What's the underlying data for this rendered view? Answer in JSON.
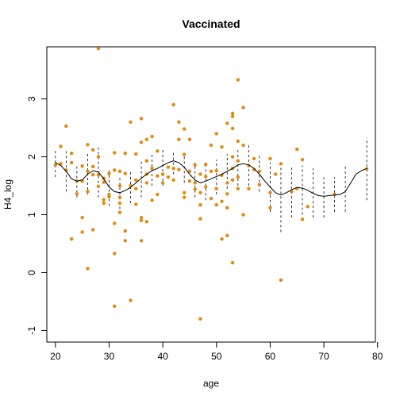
{
  "chart_data": {
    "type": "scatter",
    "title": "Vaccinated",
    "xlabel": "age",
    "ylabel": "H4_log",
    "xlim": [
      18.4,
      79.6
    ],
    "ylim": [
      -1.2,
      3.9
    ],
    "xticks": [
      20,
      30,
      40,
      50,
      60,
      70,
      80
    ],
    "yticks": [
      -1,
      0,
      1,
      2,
      3
    ],
    "grid": false,
    "point_color": "#E08A0B",
    "line_color": "#000000",
    "points": [
      [
        20,
        1.86
      ],
      [
        21,
        1.88
      ],
      [
        21,
        2.18
      ],
      [
        22,
        2.53
      ],
      [
        22,
        1.77
      ],
      [
        23,
        1.9
      ],
      [
        23,
        0.58
      ],
      [
        23,
        2.06
      ],
      [
        24,
        1.58
      ],
      [
        24,
        1.36
      ],
      [
        25,
        1.84
      ],
      [
        25,
        1.58
      ],
      [
        25,
        0.95
      ],
      [
        25,
        0.7
      ],
      [
        26,
        1.4
      ],
      [
        26,
        1.75
      ],
      [
        26,
        2.21
      ],
      [
        26,
        0.07
      ],
      [
        27,
        1.69
      ],
      [
        27,
        1.83
      ],
      [
        27,
        2.12
      ],
      [
        27,
        0.74
      ],
      [
        28,
        3.87
      ],
      [
        28,
        2.0
      ],
      [
        28,
        1.69
      ],
      [
        28,
        1.49
      ],
      [
        29,
        1.26
      ],
      [
        29,
        1.2
      ],
      [
        29,
        1.56
      ],
      [
        29,
        1.63
      ],
      [
        30,
        1.35
      ],
      [
        30,
        1.71
      ],
      [
        30,
        1.31
      ],
      [
        31,
        1.77
      ],
      [
        31,
        2.07
      ],
      [
        31,
        0.85
      ],
      [
        31,
        0.33
      ],
      [
        31,
        -0.58
      ],
      [
        32,
        1.75
      ],
      [
        32,
        1.5
      ],
      [
        32,
        1.3
      ],
      [
        32,
        1.2
      ],
      [
        32,
        1.04
      ],
      [
        33,
        1.71
      ],
      [
        33,
        2.06
      ],
      [
        33,
        0.55
      ],
      [
        33,
        0.72
      ],
      [
        34,
        2.6
      ],
      [
        34,
        1.5
      ],
      [
        34,
        -0.48
      ],
      [
        35,
        2.05
      ],
      [
        35,
        1.6
      ],
      [
        35,
        1.45
      ],
      [
        35,
        1.18
      ],
      [
        36,
        2.66
      ],
      [
        36,
        2.25
      ],
      [
        36,
        0.95
      ],
      [
        36,
        0.9
      ],
      [
        36,
        0.55
      ],
      [
        37,
        2.3
      ],
      [
        37,
        1.93
      ],
      [
        37,
        1.7
      ],
      [
        37,
        1.55
      ],
      [
        37,
        0.88
      ],
      [
        38,
        2.35
      ],
      [
        38,
        1.8
      ],
      [
        38,
        1.25
      ],
      [
        39,
        2.1
      ],
      [
        39,
        1.67
      ],
      [
        39,
        1.35
      ],
      [
        40,
        1.55
      ],
      [
        40,
        1.7
      ],
      [
        41,
        1.82
      ],
      [
        41,
        1.65
      ],
      [
        42,
        2.9
      ],
      [
        42,
        1.8
      ],
      [
        42,
        1.6
      ],
      [
        43,
        2.6
      ],
      [
        43,
        2.3
      ],
      [
        43,
        1.78
      ],
      [
        44,
        2.48
      ],
      [
        44,
        2.04
      ],
      [
        44,
        1.38
      ],
      [
        44,
        1.3
      ],
      [
        45,
        2.3
      ],
      [
        45,
        1.75
      ],
      [
        45,
        1.58
      ],
      [
        46,
        1.86
      ],
      [
        46,
        1.55
      ],
      [
        46,
        1.44
      ],
      [
        47,
        1.7
      ],
      [
        47,
        1.38
      ],
      [
        47,
        1.17
      ],
      [
        47,
        0.93
      ],
      [
        47,
        -0.8
      ],
      [
        48,
        1.87
      ],
      [
        48,
        1.66
      ],
      [
        48,
        1.48
      ],
      [
        49,
        2.2
      ],
      [
        49,
        1.75
      ],
      [
        49,
        1.28
      ],
      [
        50,
        2.4
      ],
      [
        50,
        1.76
      ],
      [
        50,
        1.45
      ],
      [
        50,
        1.17
      ],
      [
        51,
        2.17
      ],
      [
        51,
        1.68
      ],
      [
        51,
        1.23
      ],
      [
        51,
        0.58
      ],
      [
        52,
        2.58
      ],
      [
        52,
        1.55
      ],
      [
        52,
        1.36
      ],
      [
        52,
        1.12
      ],
      [
        52,
        0.64
      ],
      [
        53,
        2.75
      ],
      [
        53,
        2.7
      ],
      [
        53,
        2.49
      ],
      [
        53,
        2.0
      ],
      [
        53,
        1.8
      ],
      [
        53,
        1.6
      ],
      [
        53,
        0.17
      ],
      [
        54,
        3.33
      ],
      [
        54,
        2.27
      ],
      [
        54,
        1.93
      ],
      [
        54,
        1.65
      ],
      [
        54,
        1.45
      ],
      [
        55,
        2.85
      ],
      [
        55,
        2.2
      ],
      [
        55,
        1.0
      ],
      [
        56,
        1.85
      ],
      [
        56,
        1.45
      ],
      [
        57,
        1.97
      ],
      [
        57,
        1.78
      ],
      [
        58,
        1.75
      ],
      [
        58,
        1.52
      ],
      [
        60,
        1.97
      ],
      [
        60,
        1.38
      ],
      [
        60,
        1.12
      ],
      [
        61,
        1.7
      ],
      [
        62,
        1.88
      ],
      [
        62,
        -0.13
      ],
      [
        64,
        1.4
      ],
      [
        65,
        2.13
      ],
      [
        65,
        1.45
      ],
      [
        66,
        1.95
      ],
      [
        66,
        0.92
      ],
      [
        67,
        1.14
      ],
      [
        72,
        1.35
      ],
      [
        78,
        1.79
      ]
    ],
    "smooth_line": [
      [
        20,
        1.9
      ],
      [
        21,
        1.85
      ],
      [
        22,
        1.75
      ],
      [
        23,
        1.62
      ],
      [
        24,
        1.58
      ],
      [
        25,
        1.6
      ],
      [
        26,
        1.7
      ],
      [
        27,
        1.76
      ],
      [
        28,
        1.74
      ],
      [
        29,
        1.62
      ],
      [
        30,
        1.48
      ],
      [
        31,
        1.4
      ],
      [
        32,
        1.38
      ],
      [
        33,
        1.42
      ],
      [
        34,
        1.47
      ],
      [
        35,
        1.55
      ],
      [
        36,
        1.63
      ],
      [
        37,
        1.7
      ],
      [
        38,
        1.76
      ],
      [
        39,
        1.8
      ],
      [
        40,
        1.85
      ],
      [
        41,
        1.9
      ],
      [
        42,
        1.93
      ],
      [
        43,
        1.9
      ],
      [
        44,
        1.82
      ],
      [
        45,
        1.7
      ],
      [
        46,
        1.6
      ],
      [
        47,
        1.55
      ],
      [
        48,
        1.58
      ],
      [
        49,
        1.62
      ],
      [
        50,
        1.66
      ],
      [
        51,
        1.7
      ],
      [
        52,
        1.75
      ],
      [
        53,
        1.8
      ],
      [
        54,
        1.86
      ],
      [
        55,
        1.88
      ],
      [
        56,
        1.86
      ],
      [
        57,
        1.8
      ],
      [
        58,
        1.7
      ],
      [
        59,
        1.58
      ],
      [
        60,
        1.48
      ],
      [
        61,
        1.38
      ],
      [
        62,
        1.34
      ],
      [
        63,
        1.38
      ],
      [
        64,
        1.43
      ],
      [
        65,
        1.47
      ],
      [
        66,
        1.46
      ],
      [
        67,
        1.42
      ],
      [
        68,
        1.37
      ],
      [
        69,
        1.33
      ],
      [
        70,
        1.32
      ],
      [
        71,
        1.33
      ],
      [
        72,
        1.34
      ],
      [
        73,
        1.35
      ],
      [
        74,
        1.4
      ],
      [
        75,
        1.55
      ],
      [
        76,
        1.7
      ],
      [
        77,
        1.76
      ],
      [
        78,
        1.8
      ]
    ],
    "interval_bars": [
      [
        20,
        1.65,
        2.13
      ],
      [
        22,
        1.4,
        2.1
      ],
      [
        24,
        1.3,
        1.85
      ],
      [
        26,
        1.35,
        2.05
      ],
      [
        28,
        1.3,
        2.2
      ],
      [
        30,
        1.15,
        1.8
      ],
      [
        32,
        1.1,
        1.65
      ],
      [
        34,
        1.2,
        1.75
      ],
      [
        36,
        1.3,
        1.95
      ],
      [
        38,
        1.5,
        2.05
      ],
      [
        40,
        1.5,
        2.15
      ],
      [
        42,
        1.7,
        2.1
      ],
      [
        44,
        1.55,
        2.05
      ],
      [
        46,
        1.3,
        1.9
      ],
      [
        48,
        1.25,
        1.85
      ],
      [
        50,
        1.35,
        1.95
      ],
      [
        52,
        1.45,
        2.05
      ],
      [
        54,
        1.5,
        2.15
      ],
      [
        56,
        1.5,
        2.2
      ],
      [
        58,
        1.4,
        2.05
      ],
      [
        60,
        1.05,
        1.9
      ],
      [
        62,
        0.7,
        1.9
      ],
      [
        64,
        0.95,
        1.85
      ],
      [
        66,
        1.0,
        1.85
      ],
      [
        68,
        0.95,
        1.8
      ],
      [
        70,
        0.95,
        1.65
      ],
      [
        72,
        1.05,
        1.65
      ],
      [
        74,
        1.05,
        1.85
      ],
      [
        78,
        1.25,
        2.33
      ]
    ]
  }
}
